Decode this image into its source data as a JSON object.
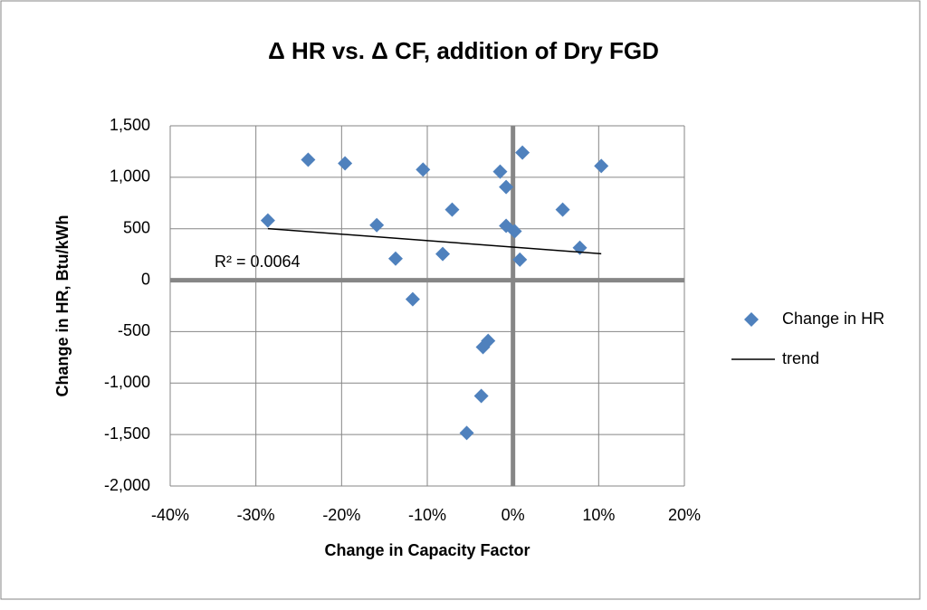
{
  "chart_data": {
    "type": "scatter",
    "title": "Δ HR vs. Δ CF, addition of Dry FGD",
    "x_label": "Change in Capacity Factor",
    "y_label": "Change in HR, Btu/kWh",
    "annotation": "R² = 0.0064",
    "series": [
      {
        "name": "Change in HR",
        "color": "#4f81bd",
        "kind": "points",
        "x": [
          -28.6,
          -23.9,
          -19.6,
          -15.9,
          -13.7,
          -11.7,
          -10.5,
          -7.1,
          -8.2,
          -5.4,
          -3.7,
          -3.5,
          -2.9,
          -1.5,
          -0.8,
          -0.8,
          0.2,
          1.1,
          0.8,
          5.8,
          7.8,
          10.3
        ],
        "values": [
          580,
          1170,
          1135,
          535,
          210,
          -185,
          1075,
          685,
          255,
          -1485,
          -1125,
          -650,
          -590,
          1055,
          905,
          528,
          475,
          1240,
          200,
          685,
          315,
          1110
        ]
      },
      {
        "name": "trend",
        "color": "#000000",
        "kind": "line",
        "x": [
          -28.6,
          10.3
        ],
        "values": [
          501,
          257
        ]
      }
    ],
    "xlim": [
      -40,
      20
    ],
    "xticks": [
      {
        "value": -40,
        "label": "-40%"
      },
      {
        "value": -30,
        "label": "-30%"
      },
      {
        "value": -20,
        "label": "-20%"
      },
      {
        "value": -10,
        "label": "-10%"
      },
      {
        "value": 0,
        "label": "0%"
      },
      {
        "value": 10,
        "label": "10%"
      },
      {
        "value": 20,
        "label": "20%"
      }
    ],
    "ylim": [
      -2000,
      1500
    ],
    "yticks": [
      {
        "value": -2000,
        "label": "-2,000"
      },
      {
        "value": -1500,
        "label": "-1,500"
      },
      {
        "value": -1000,
        "label": "-1,000"
      },
      -500,
      0,
      500,
      {
        "value": 1000,
        "label": "1,000"
      },
      {
        "value": 1500,
        "label": "1,500"
      }
    ],
    "grid": true,
    "legend": "right"
  }
}
